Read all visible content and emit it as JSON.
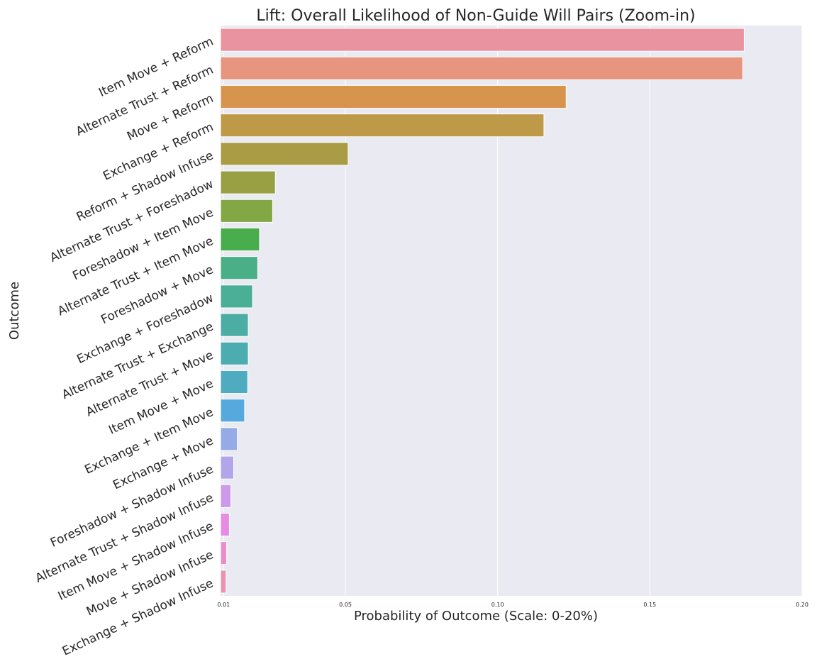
{
  "chart_data": {
    "type": "bar",
    "orientation": "horizontal",
    "title": "Lift: Overall Likelihood of Non-Guide Will Pairs (Zoom-in)",
    "xlabel": "Probability of Outcome (Scale: 0-20%)",
    "ylabel": "Outcome",
    "xlim": [
      0.009,
      0.2
    ],
    "xticks": [
      "0.01",
      "0.05",
      "0.10",
      "0.15",
      "0.20"
    ],
    "xtick_values": [
      0.01,
      0.05,
      0.1,
      0.15,
      0.2
    ],
    "grid": true,
    "categories": [
      "Item Move + Reform",
      "Alternate Trust + Reform",
      "Move + Reform",
      "Exchange + Reform",
      "Reform + Shadow Infuse",
      "Alternate Trust + Foreshadow",
      "Foreshadow + Item Move",
      "Alternate Trust + Item Move",
      "Foreshadow + Move",
      "Exchange + Foreshadow",
      "Alternate Trust + Exchange",
      "Alternate Trust + Move",
      "Item Move + Move",
      "Exchange + Item Move",
      "Exchange + Move",
      "Foreshadow + Shadow Infuse",
      "Alternate Trust + Shadow Infuse",
      "Item Move + Shadow Infuse",
      "Move + Shadow Infuse",
      "Exchange + Shadow Infuse"
    ],
    "values": [
      0.181,
      0.1805,
      0.1225,
      0.1152,
      0.0509,
      0.027,
      0.0261,
      0.0218,
      0.0212,
      0.0195,
      0.0181,
      0.0181,
      0.0179,
      0.0169,
      0.0145,
      0.0133,
      0.0124,
      0.0119,
      0.011,
      0.0108
    ],
    "colors": [
      "#e8939f",
      "#e89580",
      "#d7944d",
      "#be9a48",
      "#a99c44",
      "#99a043",
      "#84a745",
      "#48ad4c",
      "#4aae86",
      "#4bae97",
      "#4cada5",
      "#4dacb0",
      "#4eabc0",
      "#56a9dd",
      "#94abe5",
      "#b2a5ec",
      "#cc9ae8",
      "#e68ce3",
      "#e88fc7",
      "#e893b2"
    ],
    "background": "#eaeaf2",
    "gridline_color": "#ffffff"
  }
}
